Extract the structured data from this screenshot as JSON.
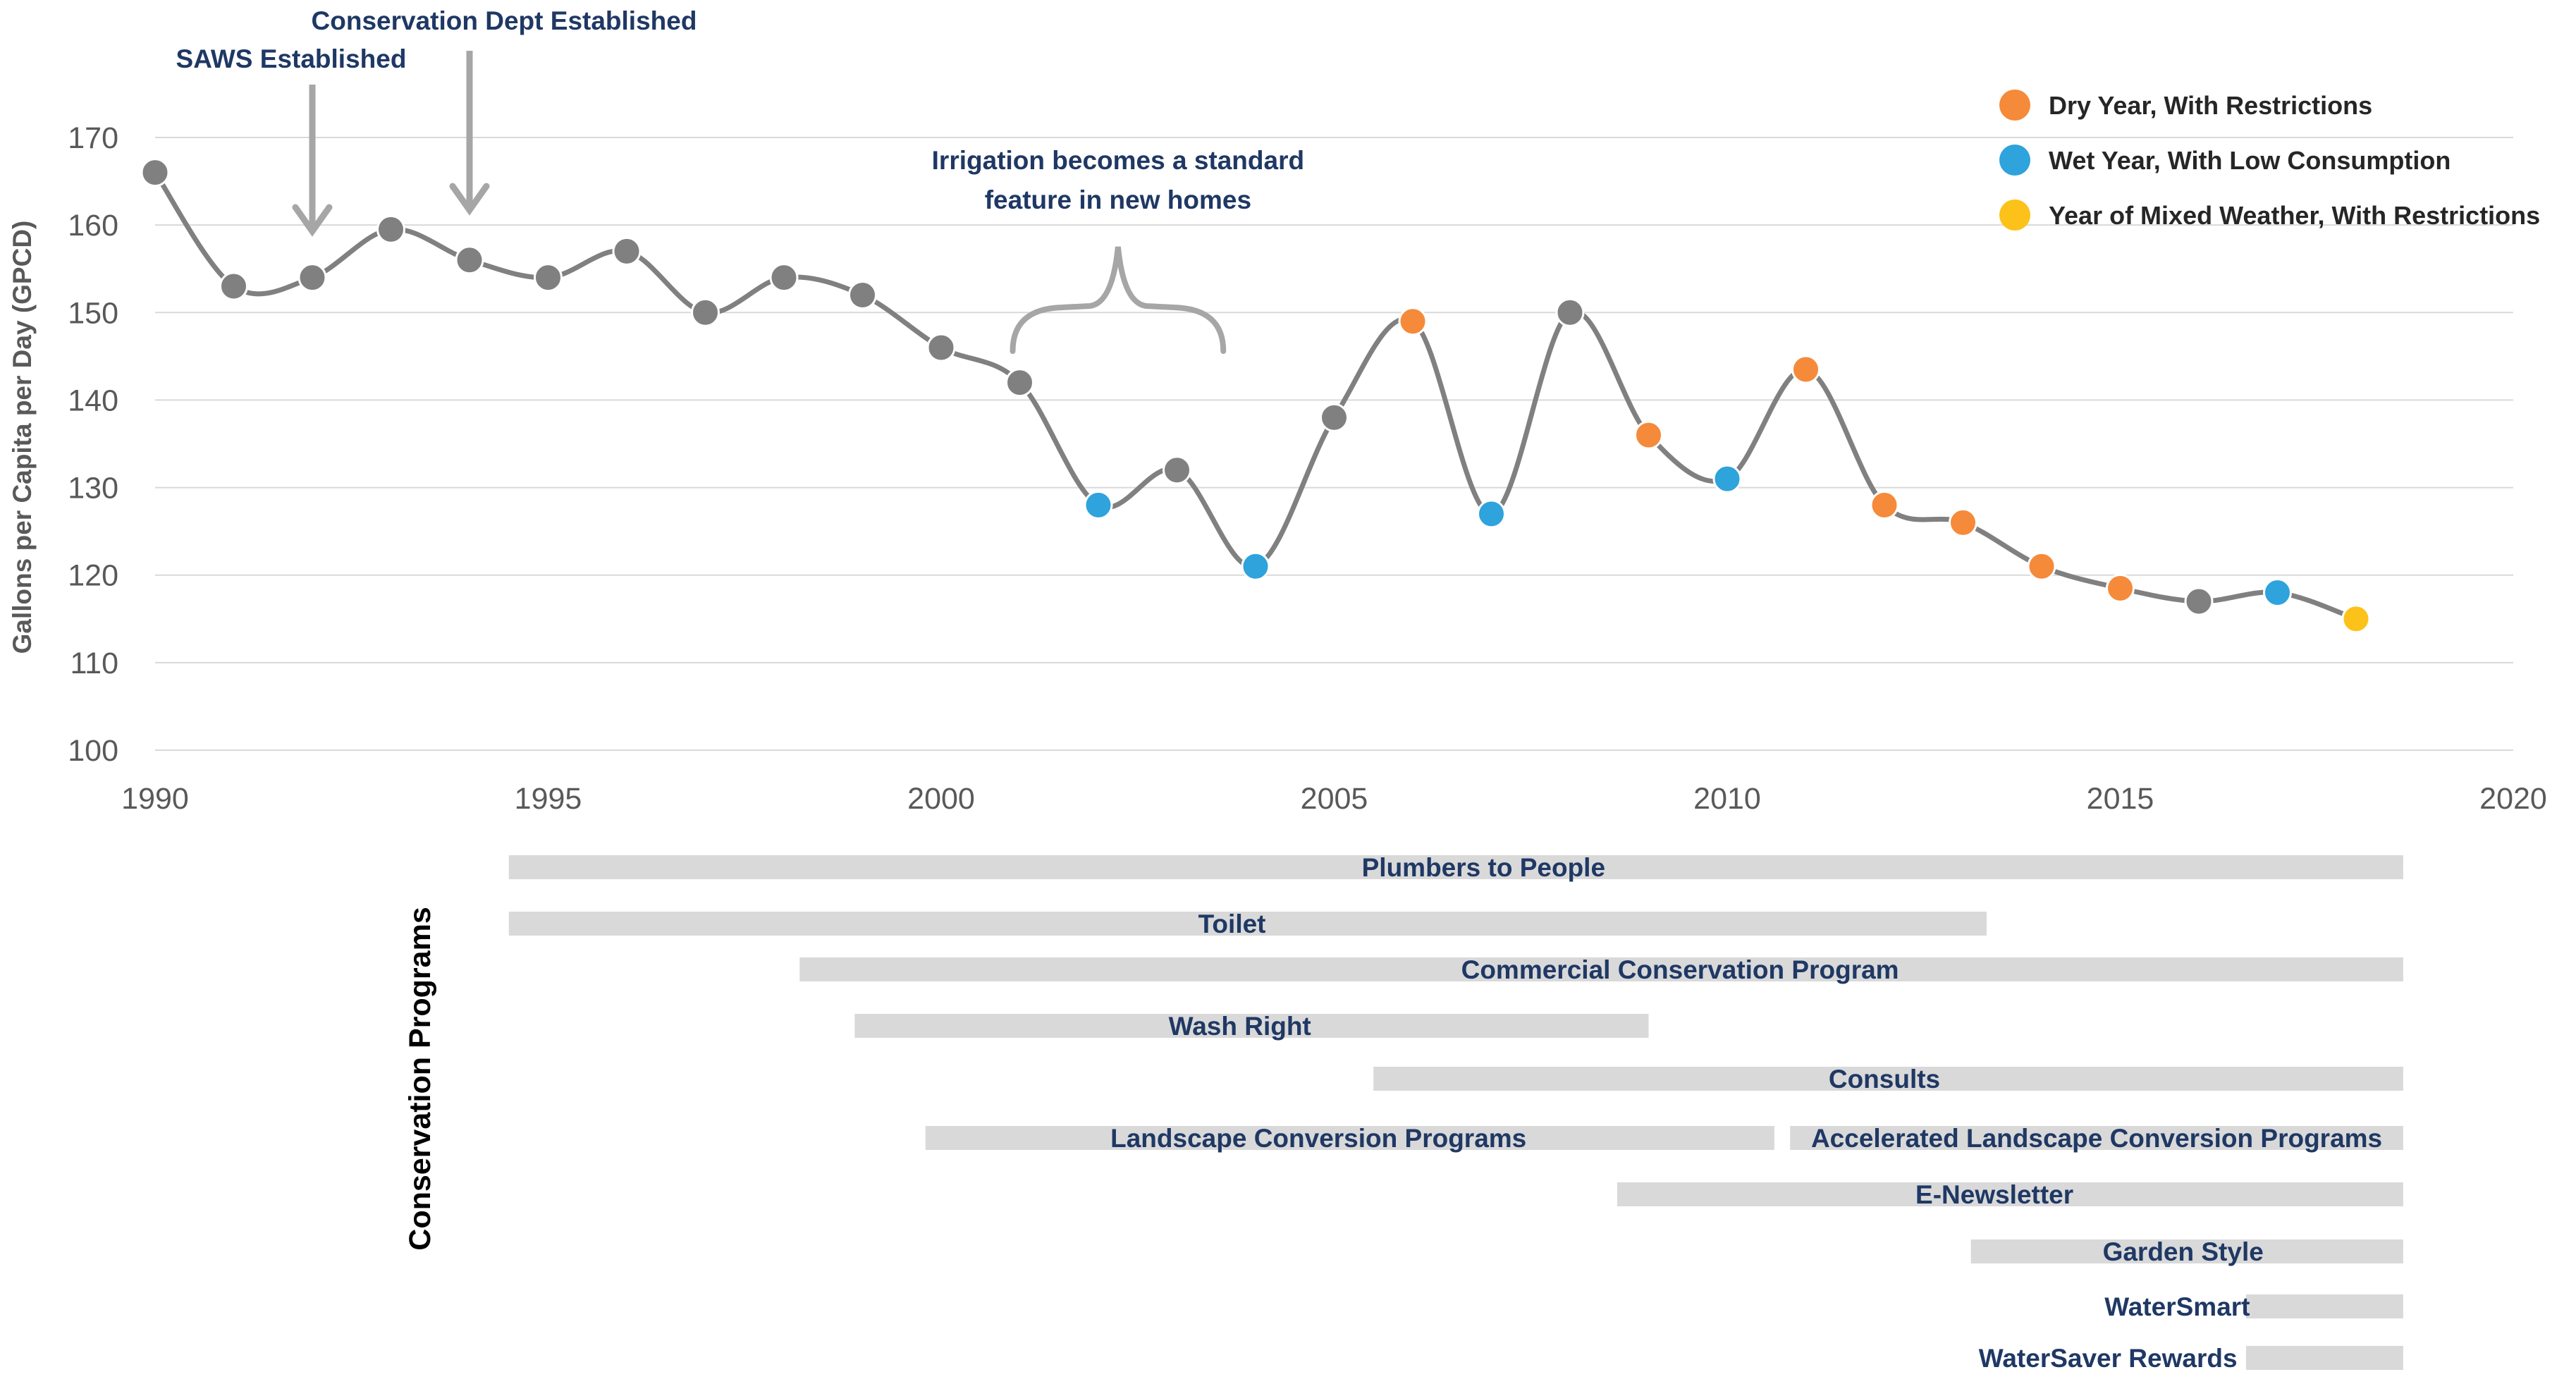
{
  "chart_data": {
    "type": "line",
    "title": "",
    "xlabel": "",
    "ylabel": "Gallons per Capita per Day (GPCD)",
    "xlim": [
      1990,
      2020
    ],
    "ylim": [
      100,
      170
    ],
    "x_ticks": [
      "1990",
      "1995",
      "2000",
      "2005",
      "2010",
      "2015",
      "2020"
    ],
    "y_ticks": [
      "100",
      "110",
      "120",
      "130",
      "140",
      "150",
      "160",
      "170"
    ],
    "grid": true,
    "series": [
      {
        "name": "GPCD",
        "points": [
          {
            "x": 1990,
            "y": 166,
            "category": "default"
          },
          {
            "x": 1991,
            "y": 153,
            "category": "default"
          },
          {
            "x": 1992,
            "y": 154,
            "category": "default"
          },
          {
            "x": 1993,
            "y": 159.5,
            "category": "default"
          },
          {
            "x": 1994,
            "y": 156,
            "category": "default"
          },
          {
            "x": 1995,
            "y": 154,
            "category": "default"
          },
          {
            "x": 1996,
            "y": 157,
            "category": "default"
          },
          {
            "x": 1997,
            "y": 150,
            "category": "default"
          },
          {
            "x": 1998,
            "y": 154,
            "category": "default"
          },
          {
            "x": 1999,
            "y": 152,
            "category": "default"
          },
          {
            "x": 2000,
            "y": 146,
            "category": "default"
          },
          {
            "x": 2001,
            "y": 142,
            "category": "default"
          },
          {
            "x": 2002,
            "y": 128,
            "category": "wet"
          },
          {
            "x": 2003,
            "y": 132,
            "category": "default"
          },
          {
            "x": 2004,
            "y": 121,
            "category": "wet"
          },
          {
            "x": 2005,
            "y": 138,
            "category": "default"
          },
          {
            "x": 2006,
            "y": 149,
            "category": "dry"
          },
          {
            "x": 2007,
            "y": 127,
            "category": "wet"
          },
          {
            "x": 2008,
            "y": 150,
            "category": "default"
          },
          {
            "x": 2009,
            "y": 136,
            "category": "dry"
          },
          {
            "x": 2010,
            "y": 131,
            "category": "wet"
          },
          {
            "x": 2011,
            "y": 143.5,
            "category": "dry"
          },
          {
            "x": 2012,
            "y": 128,
            "category": "dry"
          },
          {
            "x": 2013,
            "y": 126,
            "category": "dry"
          },
          {
            "x": 2014,
            "y": 121,
            "category": "dry"
          },
          {
            "x": 2015,
            "y": 118.5,
            "category": "dry"
          },
          {
            "x": 2016,
            "y": 117,
            "category": "default"
          },
          {
            "x": 2017,
            "y": 118,
            "category": "wet"
          },
          {
            "x": 2018,
            "y": 115,
            "category": "mixed"
          }
        ]
      }
    ],
    "legend": {
      "placement": "top-right",
      "items": [
        {
          "key": "dry",
          "label": "Dry Year, With Restrictions",
          "color": "#f58a3a"
        },
        {
          "key": "wet",
          "label": "Wet Year, With Low Consumption",
          "color": "#2ea3dc"
        },
        {
          "key": "mixed",
          "label": "Year of Mixed Weather, With Restrictions",
          "color": "#fcc21a"
        }
      ]
    },
    "colors": {
      "default": "#808080",
      "line": "#808080",
      "grid": "#d9d9d9",
      "bar": "#d9d9d9"
    },
    "annotations": [
      {
        "id": "saws",
        "text": "SAWS Established",
        "x": 1992
      },
      {
        "id": "conservation_dept",
        "text": "Conservation Dept Established",
        "x": 1994
      },
      {
        "id": "irrigation",
        "text_lines": [
          "Irrigation becomes a standard",
          "feature in new homes"
        ],
        "x_start": 2001,
        "x_end": 2003.5
      }
    ],
    "programs_title": "Conservation Programs",
    "programs": [
      {
        "label": "Plumbers to People",
        "segments": [
          [
            1994.5,
            2018.6
          ]
        ],
        "label_x": 2006.9
      },
      {
        "label": "Toilet",
        "segments": [
          [
            1994.5,
            2013.3
          ]
        ],
        "label_x": 2003.7
      },
      {
        "label": "Commercial Conservation Program",
        "segments": [
          [
            1998.2,
            2018.6
          ]
        ],
        "label_x": 2009.4
      },
      {
        "label": "Wash Right",
        "segments": [
          [
            1998.9,
            2009.0
          ]
        ],
        "label_x": 2003.8
      },
      {
        "label": "Consults",
        "segments": [
          [
            2005.5,
            2018.6
          ]
        ],
        "label_x": 2012.0
      },
      {
        "label": "Landscape Conversion Programs",
        "segments": [
          [
            1999.8,
            2010.6
          ]
        ],
        "label_x": 2004.8
      },
      {
        "label": "Accelerated Landscape Conversion Programs",
        "segments": [
          [
            2010.8,
            2018.6
          ]
        ],
        "label_x": 2014.7
      },
      {
        "label": "E-Newsletter",
        "segments": [
          [
            2008.6,
            2018.6
          ]
        ],
        "label_x": 2013.4
      },
      {
        "label": "Garden Style",
        "segments": [
          [
            2013.1,
            2018.6
          ]
        ],
        "label_x": 2015.8
      },
      {
        "label": "WaterSmart",
        "segments": [
          [
            2016.6,
            2018.6
          ]
        ],
        "label_x": 2014.8,
        "label_anchor": "start"
      },
      {
        "label": "WaterSaver Rewards",
        "segments": [
          [
            2016.6,
            2018.6
          ]
        ],
        "label_x": 2013.2,
        "label_anchor": "start"
      }
    ]
  }
}
